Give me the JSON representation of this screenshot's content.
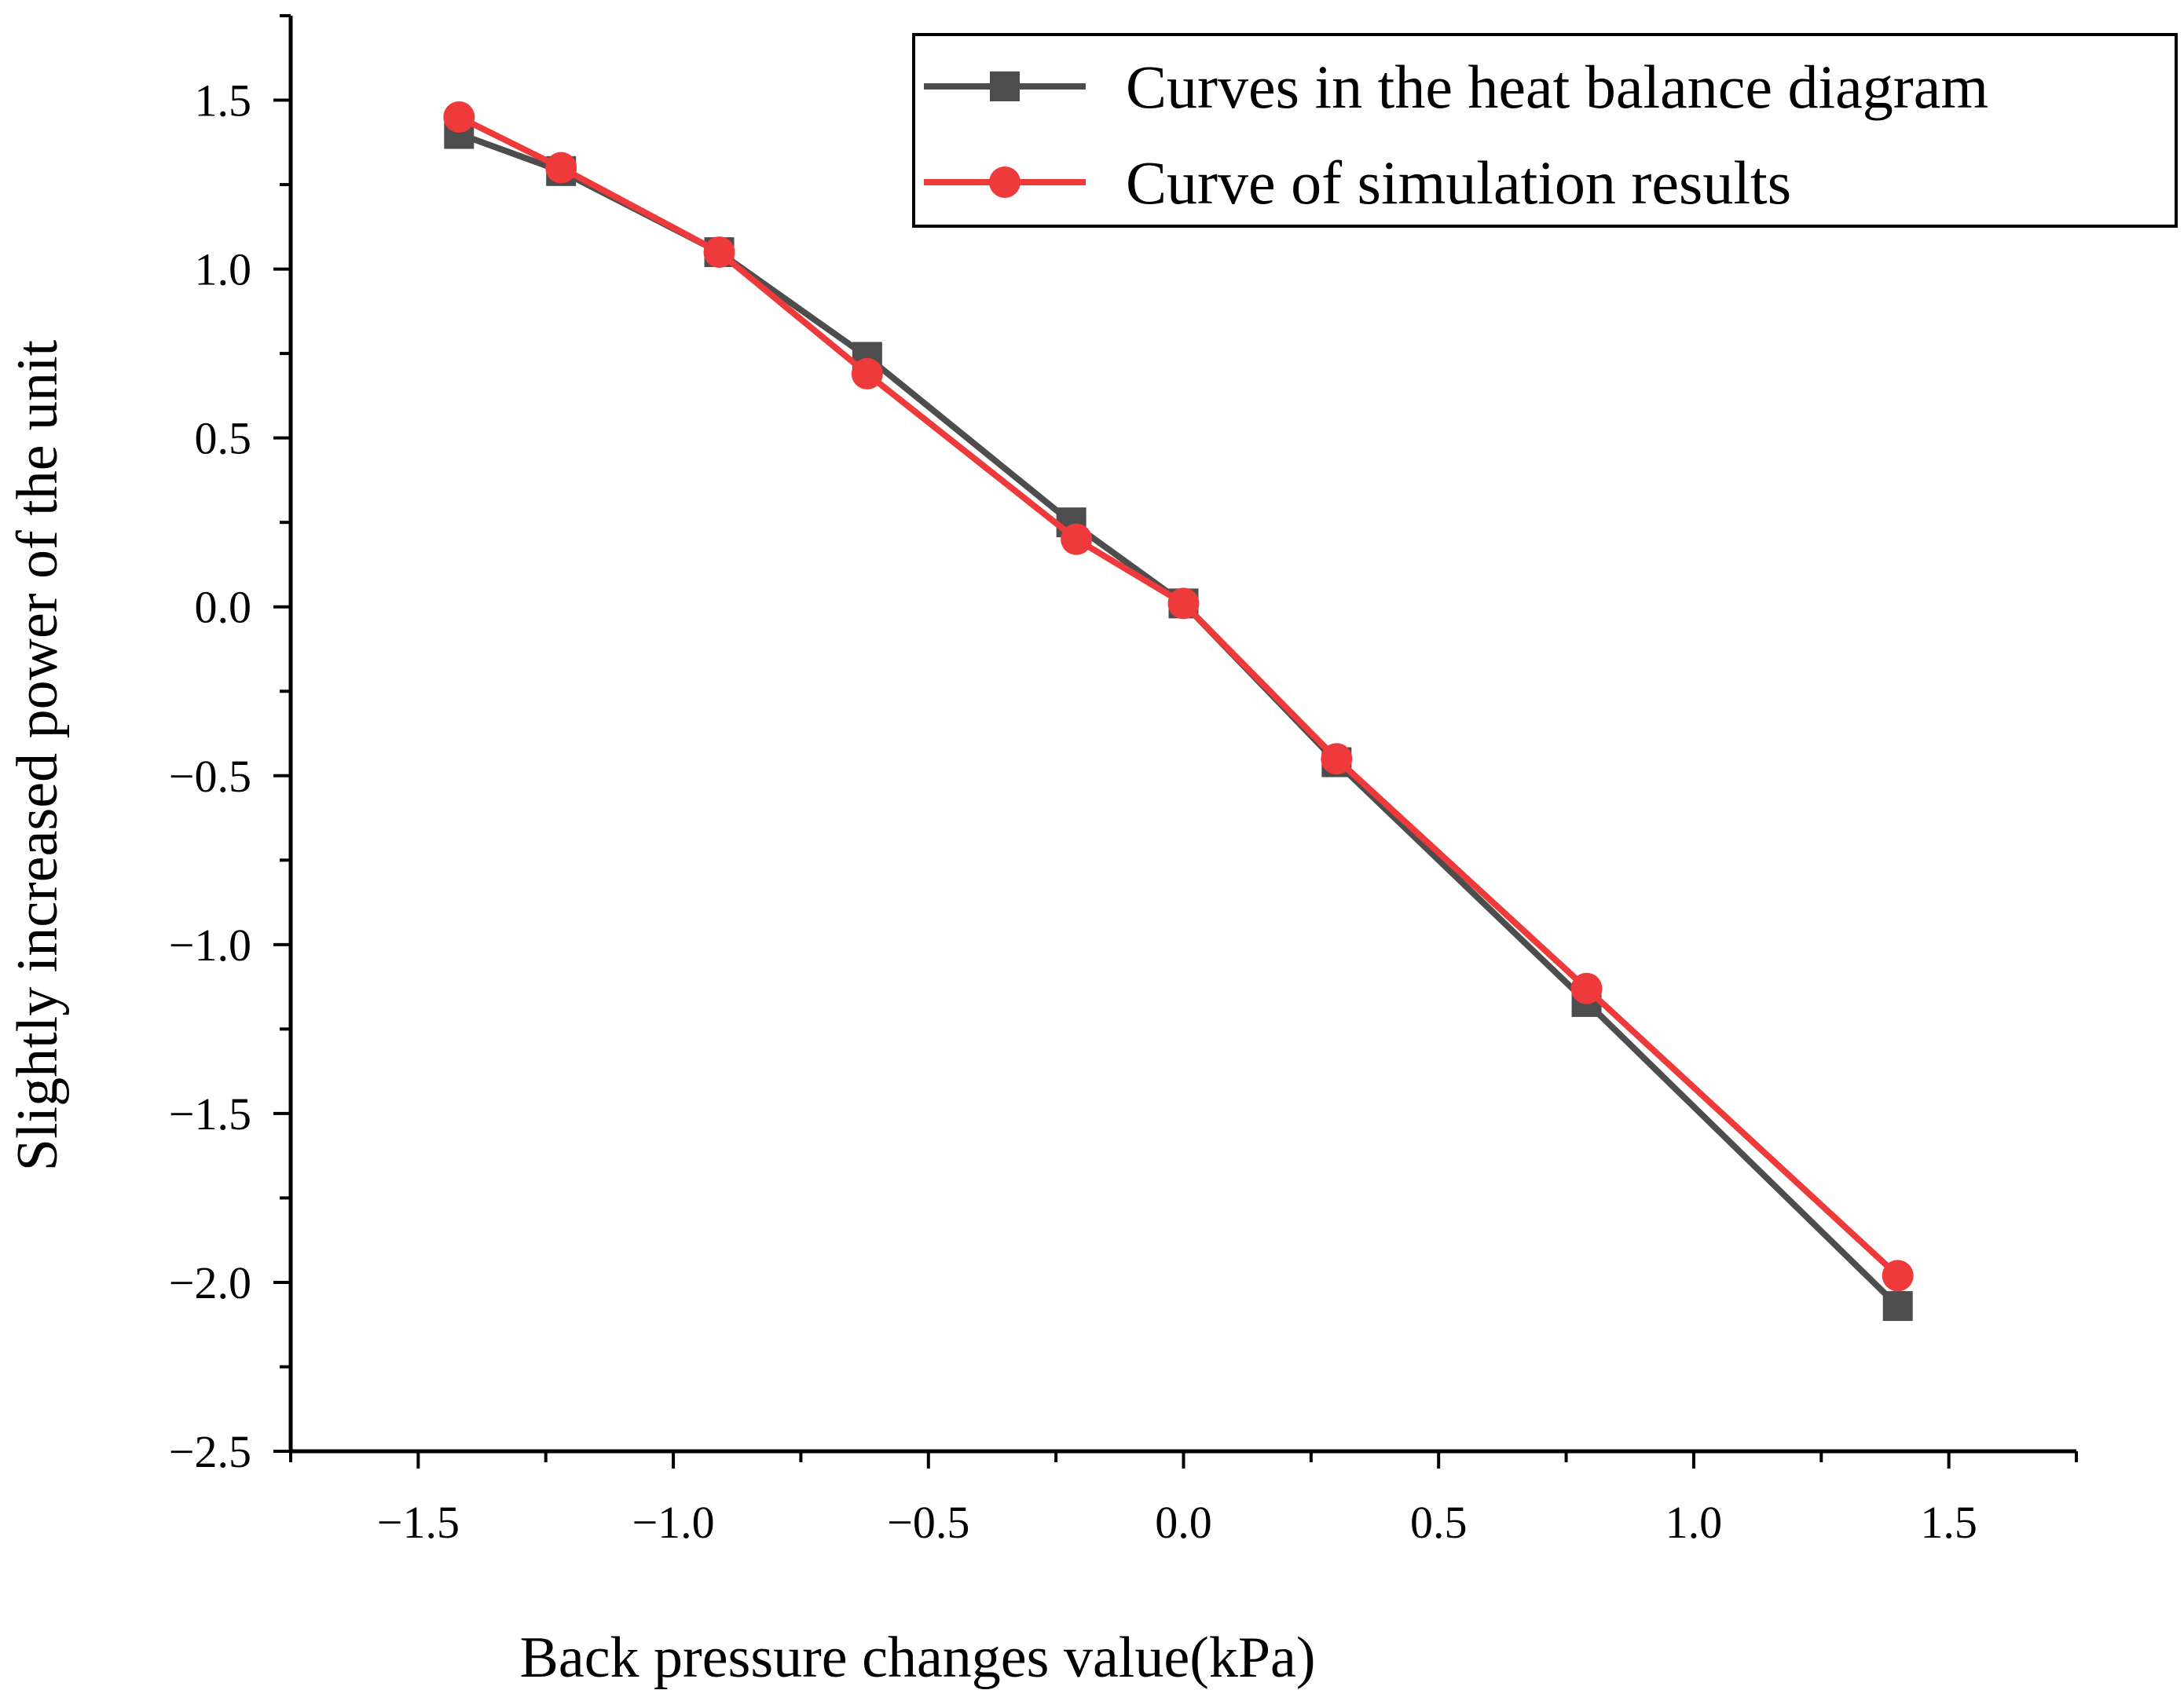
{
  "chart_data": {
    "type": "line",
    "title": "",
    "xlabel": "Back pressure changes value(kPa)",
    "ylabel": "Slightly increased power of the unit",
    "xlim": [
      -1.75,
      1.75
    ],
    "ylim": [
      -2.5,
      1.75
    ],
    "x_ticks": [
      -1.5,
      -1.0,
      -0.5,
      0.0,
      0.5,
      1.0,
      1.5
    ],
    "x_tick_labels": [
      "−1.5",
      "−1.0",
      "−0.5",
      "0.0",
      "0.5",
      "1.0",
      "1.5"
    ],
    "y_ticks": [
      1.5,
      1.0,
      0.5,
      0.0,
      -0.5,
      -1.0,
      -1.5,
      -2.0,
      -2.5
    ],
    "y_tick_labels": [
      "1.5",
      "1.0",
      "0.5",
      "0.0",
      "−0.5",
      "−1.0",
      "−1.5",
      "−2.0",
      "−2.5"
    ],
    "legend_position": "top-right",
    "series": [
      {
        "name": "Curves in the heat balance diagram",
        "color": "#4d4d4d",
        "marker": "square",
        "x": [
          -1.42,
          -1.22,
          -0.91,
          -0.62,
          -0.22,
          0.0,
          0.3,
          0.79,
          1.4
        ],
        "y": [
          1.4,
          1.29,
          1.05,
          0.74,
          0.25,
          0.01,
          -0.46,
          -1.17,
          -2.07
        ]
      },
      {
        "name": "Curve of simulation results",
        "color": "#ee3a3a",
        "marker": "circle",
        "x": [
          -1.42,
          -1.22,
          -0.91,
          -0.62,
          -0.21,
          0.0,
          0.3,
          0.79,
          1.4
        ],
        "y": [
          1.45,
          1.3,
          1.05,
          0.69,
          0.2,
          0.01,
          -0.45,
          -1.13,
          -1.98
        ]
      }
    ]
  }
}
